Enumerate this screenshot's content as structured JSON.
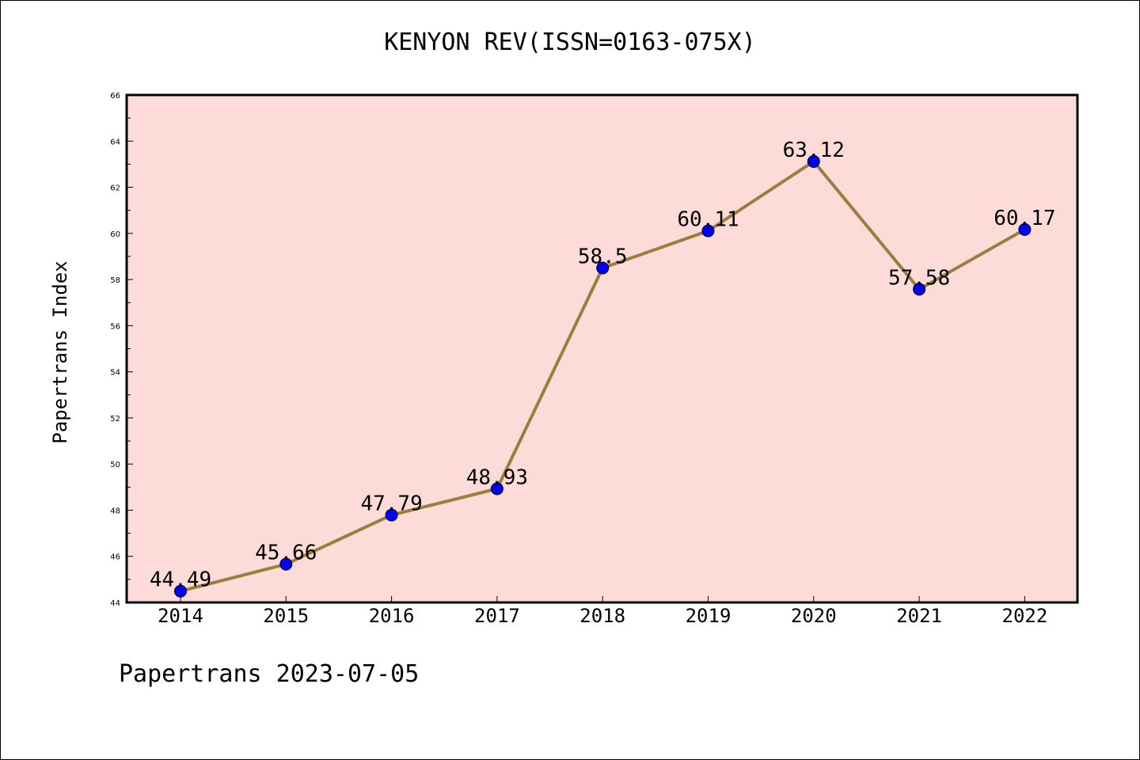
{
  "chart_data": {
    "type": "line",
    "title": "KENYON REV(ISSN=0163-075X)",
    "ylabel": "Papertrans Index",
    "xlabel": "",
    "x": [
      "2014",
      "2015",
      "2016",
      "2017",
      "2018",
      "2019",
      "2020",
      "2021",
      "2022"
    ],
    "values": [
      44.49,
      45.66,
      47.79,
      48.93,
      58.5,
      60.11,
      63.12,
      57.58,
      60.17
    ],
    "data_labels": [
      "44.49",
      "45.66",
      "47.79",
      "48.93",
      "58.5",
      "60.11",
      "63.12",
      "57.58",
      "60.17"
    ],
    "ylim": [
      44,
      66
    ],
    "y_ticks": [
      44,
      46,
      48,
      50,
      52,
      54,
      56,
      58,
      60,
      62,
      64,
      66
    ],
    "grid": false,
    "legend": "none",
    "colors": {
      "plot_background": "#fddbd8",
      "line": "#9a7e3c",
      "marker": "#0000ff"
    }
  },
  "footer": "Papertrans 2023-07-05"
}
